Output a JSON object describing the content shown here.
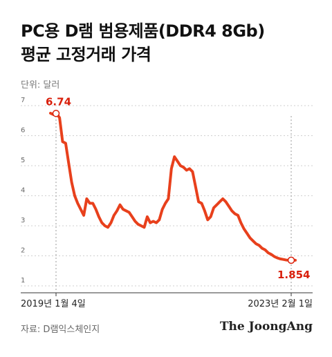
{
  "title_line1": "PC용 D램 범용제품(DDR4 8Gb)",
  "title_line2": "평균 고정거래 가격",
  "unit": "단위: 달러",
  "source": "자료: D램익스체인지",
  "brand": "The JoongAng",
  "colors": {
    "line": "#e8401c",
    "accent": "#d91f0b",
    "grid": "#cfcfcf"
  },
  "chart_data": {
    "type": "line",
    "title": "PC용 D램 범용제품(DDR4 8Gb) 평균 고정거래 가격",
    "ylabel": "단위: 달러",
    "ylim": [
      1,
      7
    ],
    "yticks": [
      1,
      2,
      3,
      4,
      5,
      6,
      7
    ],
    "grid": true,
    "x_labels": [
      "2019년 1월 4일",
      "2023년 2월 1일"
    ],
    "annotations": [
      {
        "label": "6.74",
        "index": 2
      },
      {
        "label": "1.854",
        "index": 81
      }
    ],
    "y": [
      6.75,
      6.7,
      6.74,
      6.6,
      5.8,
      5.75,
      5.1,
      4.45,
      4.0,
      3.75,
      3.55,
      3.35,
      3.9,
      3.75,
      3.75,
      3.55,
      3.3,
      3.1,
      3.0,
      2.95,
      3.1,
      3.35,
      3.5,
      3.7,
      3.55,
      3.5,
      3.45,
      3.3,
      3.15,
      3.05,
      3.0,
      2.95,
      3.3,
      3.1,
      3.15,
      3.1,
      3.2,
      3.55,
      3.75,
      3.9,
      4.9,
      5.3,
      5.15,
      5.0,
      4.95,
      4.85,
      4.9,
      4.8,
      4.3,
      3.8,
      3.75,
      3.5,
      3.2,
      3.3,
      3.6,
      3.7,
      3.8,
      3.9,
      3.8,
      3.65,
      3.5,
      3.4,
      3.35,
      3.1,
      2.9,
      2.75,
      2.6,
      2.5,
      2.4,
      2.35,
      2.25,
      2.2,
      2.1,
      2.05,
      1.98,
      1.93,
      1.9,
      1.88,
      1.86,
      1.855,
      1.854,
      1.854
    ]
  }
}
